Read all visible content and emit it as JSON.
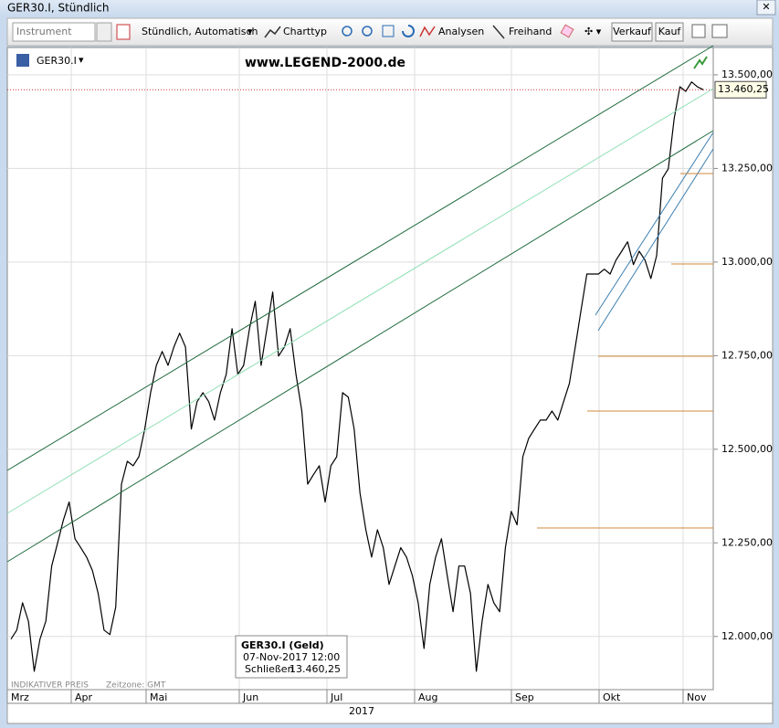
{
  "window": {
    "title": "GER30.I, Stündlich"
  },
  "toolbar": {
    "instrument_placeholder": "Instrument",
    "interval": "Stündlich, Automatisch",
    "chart_type": "Charttyp",
    "analyses": "Analysen",
    "drawing": "Freihand",
    "sell": "Verkauf",
    "buy": "Kauf"
  },
  "chart_data": {
    "type": "line",
    "symbol": "GER30.I",
    "watermark": "www.LEGEND-2000.de",
    "values": [
      11993,
      12017,
      12090,
      12041,
      11907,
      11993,
      12041,
      12188,
      12249,
      12310,
      12359,
      12261,
      12237,
      12212,
      12176,
      12115,
      12017,
      12005,
      12078,
      12407,
      12468,
      12456,
      12480,
      12554,
      12651,
      12724,
      12761,
      12724,
      12773,
      12810,
      12773,
      12554,
      12627,
      12651,
      12627,
      12578,
      12651,
      12700,
      12822,
      12700,
      12724,
      12822,
      12895,
      12724,
      12822,
      12920,
      12749,
      12773,
      12822,
      12700,
      12602,
      12407,
      12432,
      12456,
      12359,
      12456,
      12480,
      12651,
      12639,
      12554,
      12383,
      12285,
      12212,
      12285,
      12237,
      12139,
      12188,
      12237,
      12212,
      12163,
      12090,
      11968,
      12139,
      12212,
      12261,
      12163,
      12066,
      12188,
      12188,
      12115,
      11907,
      12041,
      12139,
      12090,
      12066,
      12237,
      12334,
      12298,
      12480,
      12529,
      12554,
      12578,
      12578,
      12602,
      12578,
      12627,
      12676,
      12773,
      12871,
      12968,
      12968,
      12968,
      12981,
      12968,
      13005,
      13029,
      13054,
      12993,
      13029,
      13005,
      12956,
      13017,
      13224,
      13249,
      13383,
      13468,
      13456,
      13481,
      13468,
      13460.25
    ],
    "color": "#000000",
    "ylim": [
      11858,
      13573
    ],
    "yticks": [
      {
        "value": 12000,
        "label": "12.000,00"
      },
      {
        "value": 12250,
        "label": "12.250,00"
      },
      {
        "value": 12500,
        "label": "12.500,00"
      },
      {
        "value": 12750,
        "label": "12.750,00"
      },
      {
        "value": 13000,
        "label": "13.000,00"
      },
      {
        "value": 13250,
        "label": "13.250,00"
      },
      {
        "value": 13500,
        "label": "13.500,00"
      }
    ],
    "last_value": {
      "value": 13460.25,
      "label": "13.460,25"
    },
    "x_axis_labels": [
      "Mrz",
      "Apr",
      "Mai",
      "Jun",
      "Jul",
      "Aug",
      "Sep",
      "Okt",
      "Nov"
    ],
    "x_axis_year": "2017",
    "grid": true,
    "footer_note": "INDIKATIVER PREIS",
    "timezone": "Zeitzone: GMT"
  },
  "tooltip": {
    "title": "GER30.I (Geld)",
    "datetime": "07-Nov-2017 12:00",
    "field": "Schließen"
  }
}
